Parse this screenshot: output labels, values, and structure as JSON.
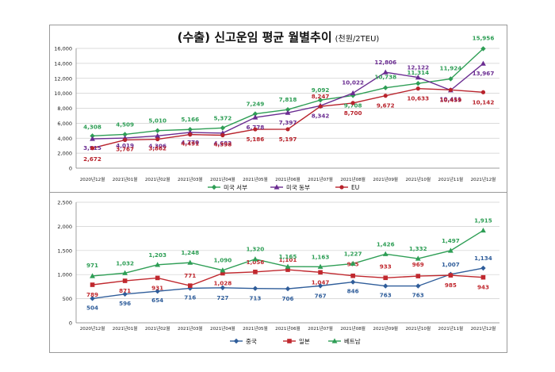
{
  "title": "(수출) 신고운임 평균 월별추이",
  "unit": "(천원/2TEU)",
  "chart_data": [
    {
      "type": "line",
      "title": "(수출) 신고운임 평균 월별추이",
      "subtitle": "(천원/2TEU)",
      "x": [
        "2020년12월",
        "2021년01월",
        "2021년02월",
        "2021년03월",
        "2021년04월",
        "2021년05월",
        "2021년06월",
        "2021년07월",
        "2021년08월",
        "2021년09월",
        "2021년10월",
        "2021년11월",
        "2021년12월"
      ],
      "ylim": [
        0,
        16000
      ],
      "yticks": [
        0,
        2000,
        4000,
        6000,
        8000,
        10000,
        12000,
        14000,
        16000
      ],
      "ytick_labels": [
        "0",
        "2,000",
        "4,000",
        "6,000",
        "8,000",
        "10,000",
        "12,000",
        "14,000",
        "16,000"
      ],
      "legend": "bottom",
      "grid": true,
      "series": [
        {
          "name": "미국 서부",
          "color": "#2e9e55",
          "marker": "diamond",
          "values": [
            4308,
            4509,
            5010,
            5166,
            5372,
            7249,
            7818,
            9092,
            9708,
            10738,
            11314,
            11924,
            15956
          ],
          "labels": [
            "4,308",
            "4,509",
            "5,010",
            "5,166",
            "5,372",
            "7,249",
            "7,818",
            "9,092",
            "9,708",
            "10,738",
            "11,314",
            "11,924",
            "15,956"
          ]
        },
        {
          "name": "미국 동부",
          "color": "#6a2c91",
          "marker": "triangle",
          "values": [
            3915,
            4019,
            4306,
            4770,
            4683,
            6778,
            7397,
            8342,
            10022,
            12806,
            12122,
            10411,
            13967
          ],
          "labels": [
            "3,915",
            "4,019",
            "4,306",
            "4,770",
            "4,683",
            "6,778",
            "7,397",
            "8,342",
            "10,022",
            "12,806",
            "12,122",
            "10,411",
            "13,967"
          ]
        },
        {
          "name": "EU",
          "color": "#b8232c",
          "marker": "circle",
          "values": [
            2672,
            3767,
            3862,
            4491,
            4398,
            5186,
            5197,
            8247,
            8700,
            9672,
            10633,
            10459,
            10142
          ],
          "labels": [
            "2,672",
            "3,767",
            "3,862",
            "4,491",
            "4,398",
            "5,186",
            "5,197",
            "8,247",
            "8,700",
            "9,672",
            "10,633",
            "10,459",
            "10,142"
          ]
        }
      ]
    },
    {
      "type": "line",
      "x": [
        "2020년12월",
        "2021년01월",
        "2021년02월",
        "2021년03월",
        "2021년04월",
        "2021년05월",
        "2021년06월",
        "2021년07월",
        "2021년08월",
        "2021년09월",
        "2021년10월",
        "2021년11월",
        "2021년12월"
      ],
      "ylim": [
        0,
        2500
      ],
      "yticks": [
        0,
        500,
        1000,
        1500,
        2000,
        2500
      ],
      "ytick_labels": [
        "0",
        "500",
        "1,000",
        "1,500",
        "2,000",
        "2,500"
      ],
      "legend": "bottom",
      "grid": true,
      "series": [
        {
          "name": "중국",
          "color": "#2f5d9a",
          "marker": "diamond",
          "values": [
            504,
            596,
            654,
            716,
            727,
            713,
            706,
            767,
            846,
            763,
            763,
            1007,
            1134
          ],
          "labels": [
            "504",
            "596",
            "654",
            "716",
            "727",
            "713",
            "706",
            "767",
            "846",
            "763",
            "763",
            "1,007",
            "1,134"
          ]
        },
        {
          "name": "일본",
          "color": "#c0282e",
          "marker": "square",
          "values": [
            789,
            871,
            931,
            771,
            1028,
            1056,
            1101,
            1047,
            975,
            933,
            969,
            985,
            943
          ],
          "labels": [
            "789",
            "871",
            "931",
            "771",
            "1,028",
            "1,056",
            "1,101",
            "1,047",
            "975",
            "933",
            "969",
            "985",
            "943"
          ]
        },
        {
          "name": "베트남",
          "color": "#2e9e55",
          "marker": "triangle",
          "values": [
            971,
            1032,
            1203,
            1248,
            1090,
            1320,
            1165,
            1163,
            1227,
            1426,
            1332,
            1497,
            1915
          ],
          "labels": [
            "971",
            "1,032",
            "1,203",
            "1,248",
            "1,090",
            "1,320",
            "1,165",
            "1,163",
            "1,227",
            "1,426",
            "1,332",
            "1,497",
            "1,915"
          ]
        }
      ]
    }
  ]
}
